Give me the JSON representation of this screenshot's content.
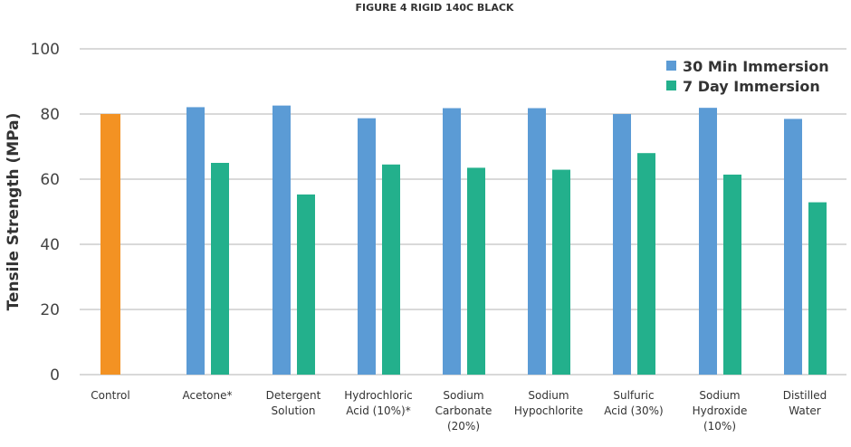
{
  "chart_data": {
    "type": "bar",
    "title": "FIGURE 4 RIGID 140C BLACK",
    "xlabel": "",
    "ylabel": "Tensile Strength (MPa)",
    "ylim": [
      0,
      100
    ],
    "yticks": [
      0,
      20,
      40,
      60,
      80,
      100
    ],
    "grid": true,
    "legend_position": "top-right",
    "categories": [
      [
        "Control"
      ],
      [
        "Acetone*"
      ],
      [
        "Detergent",
        "Solution"
      ],
      [
        "Hydrochloric",
        "Acid (10%)*"
      ],
      [
        "Sodium",
        "Carbonate",
        "(20%)"
      ],
      [
        "Sodium",
        "Hypochlorite"
      ],
      [
        "Sulfuric",
        "Acid (30%)"
      ],
      [
        "Sodium",
        "Hydroxide",
        "(10%)"
      ],
      [
        "Distilled",
        "Water"
      ]
    ],
    "control": {
      "value": 80,
      "color": "#F39223"
    },
    "series": [
      {
        "name": "30 Min Immersion",
        "color": "#5B9BD5",
        "values": [
          null,
          82.1,
          82.6,
          78.7,
          81.8,
          81.8,
          80.0,
          81.9,
          78.5
        ]
      },
      {
        "name": "7 Day Immersion",
        "color": "#23B08C",
        "values": [
          null,
          65.0,
          55.3,
          64.5,
          63.5,
          62.9,
          68.0,
          61.4,
          52.9
        ]
      }
    ]
  }
}
